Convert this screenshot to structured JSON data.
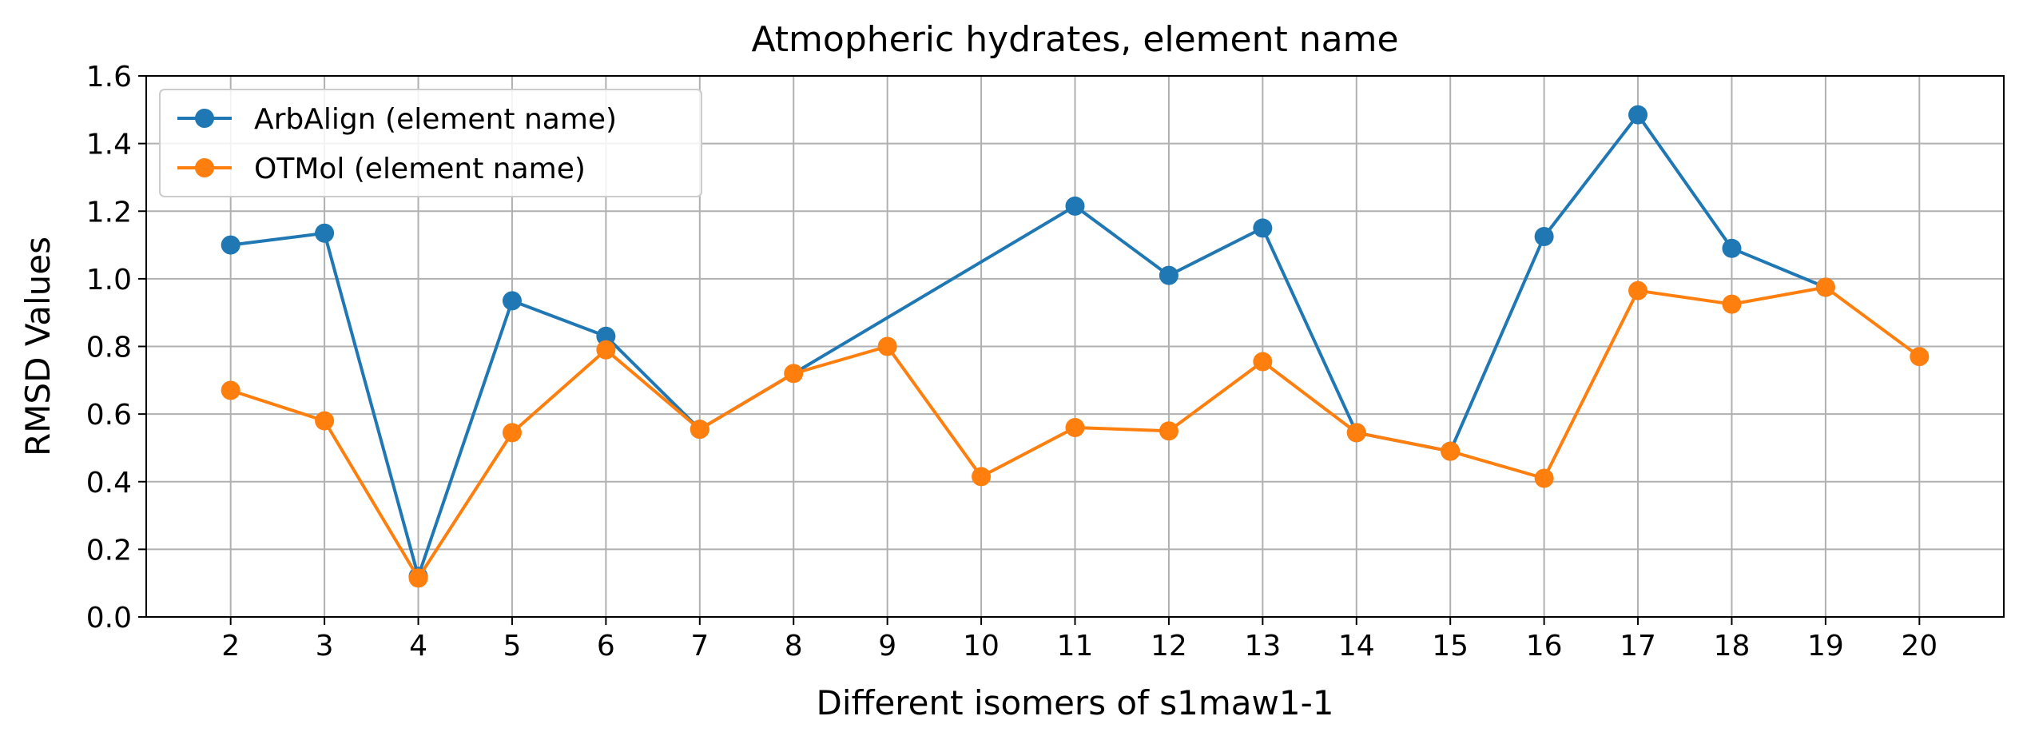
{
  "chart_data": {
    "type": "line",
    "title": "Atmopheric hydrates, element name",
    "xlabel": "Different isomers of s1maw1-1",
    "ylabel": "RMSD Values",
    "ylim": [
      0,
      1.6
    ],
    "xlim": [
      1.1,
      20.9
    ],
    "y_ticks": [
      "0.0",
      "0.2",
      "0.4",
      "0.6",
      "0.8",
      "1.0",
      "1.2",
      "1.4",
      "1.6"
    ],
    "grid": true,
    "legend_position": "top-left",
    "x": [
      2,
      3,
      4,
      5,
      6,
      7,
      8,
      9,
      10,
      11,
      12,
      13,
      14,
      15,
      16,
      17,
      18,
      19,
      20
    ],
    "series": [
      {
        "name": "ArbAlign (element name)",
        "color": "#1f77b4",
        "x": [
          2,
          3,
          4,
          5,
          6,
          7,
          11,
          12,
          13,
          14,
          15,
          16,
          17,
          18,
          19
        ],
        "values": [
          1.1,
          1.135,
          0.12,
          0.935,
          0.83,
          0.555,
          1.215,
          1.01,
          1.15,
          0.545,
          0.49,
          1.125,
          1.485,
          1.09,
          0.975
        ]
      },
      {
        "name": "OTMol (element name)",
        "color": "#ff7f0e",
        "x": [
          2,
          3,
          4,
          5,
          6,
          7,
          8,
          9,
          10,
          11,
          12,
          13,
          14,
          15,
          16,
          17,
          18,
          19,
          20
        ],
        "values": [
          0.67,
          0.58,
          0.115,
          0.545,
          0.79,
          0.555,
          0.72,
          0.8,
          0.415,
          0.56,
          0.55,
          0.755,
          0.545,
          0.49,
          0.41,
          0.965,
          0.925,
          0.975,
          0.77
        ]
      }
    ]
  }
}
